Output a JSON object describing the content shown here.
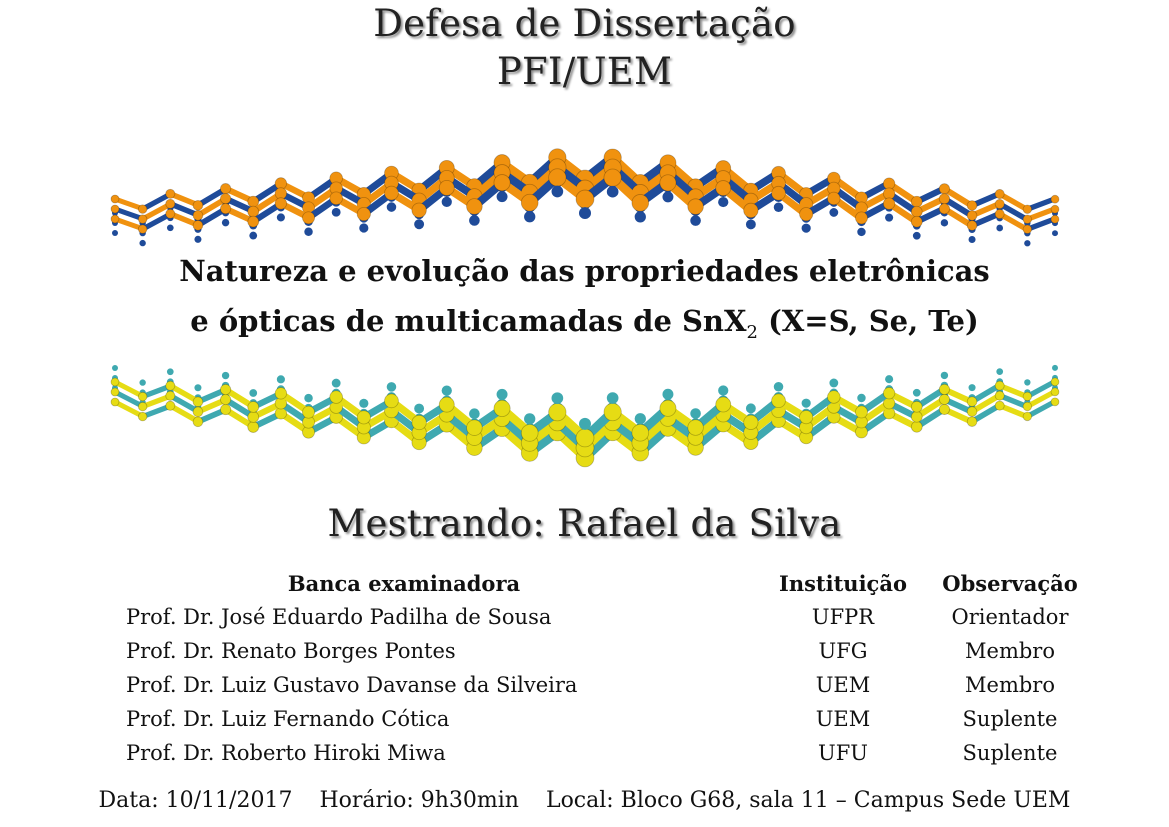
{
  "title": {
    "line1": "Defesa de Dissertação",
    "line2": "PFI/UEM"
  },
  "subtitle": {
    "line1": "Natureza e evolução das propriedades eletrônicas",
    "line2_prefix": "e ópticas de multicamadas de SnX",
    "line2_sub": "2",
    "line2_suffix": " (X=S, Se, Te)"
  },
  "presenter": "Mestrando: Rafael da Silva",
  "committee": {
    "headers": {
      "name": "Banca examinadora",
      "institution": "Instituição",
      "role": "Observação"
    },
    "rows": [
      {
        "name": "Prof. Dr. José Eduardo Padilha de Sousa",
        "institution": "UFPR",
        "role": "Orientador"
      },
      {
        "name": "Prof. Dr. Renato Borges Pontes",
        "institution": "UFG",
        "role": "Membro"
      },
      {
        "name": "Prof. Dr. Luiz Gustavo Davanse da Silveira",
        "institution": "UEM",
        "role": "Membro"
      },
      {
        "name": "Prof. Dr. Luiz Fernando Cótica",
        "institution": "UEM",
        "role": "Suplente"
      },
      {
        "name": "Prof. Dr. Roberto Hiroki Miwa",
        "institution": "UFU",
        "role": "Suplente"
      }
    ]
  },
  "footer": {
    "date": "Data: 10/11/2017",
    "time": "Horário: 9h30min",
    "location": "Local: Bloco G68, sala 11 – Campus Sede UEM"
  },
  "colors": {
    "top_atom_a": "#f0920f",
    "top_atom_b": "#1f4b99",
    "bottom_atom_a": "#e6dc14",
    "bottom_atom_b": "#3fa9b0"
  }
}
